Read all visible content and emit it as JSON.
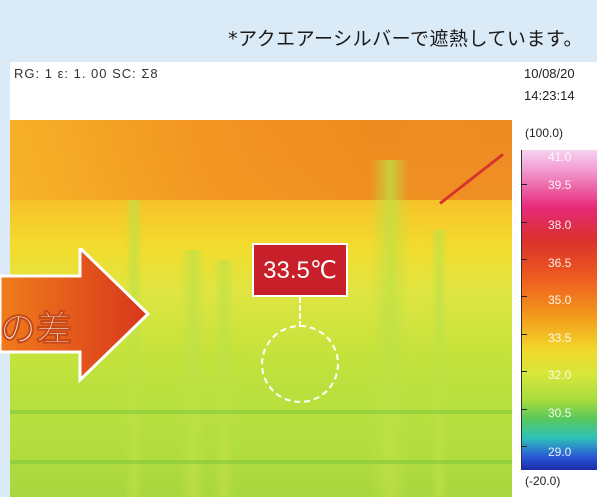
{
  "caption": "*アクエアーシルバーで遮熱しています。",
  "hud": {
    "settings": "RG: 1  ε: 1. 00  SC: Σ8",
    "date": "10/08/20",
    "time": "14:23:14"
  },
  "measurement": {
    "value_text": "33.5℃"
  },
  "arrow_text": "の差",
  "colorbar": {
    "range_top": "(100.0)",
    "range_bottom": "(-20.0)",
    "labels": [
      "41.0",
      "39.5",
      "38.0",
      "36.5",
      "35.0",
      "33.5",
      "32.0",
      "30.5",
      "29.0"
    ]
  }
}
